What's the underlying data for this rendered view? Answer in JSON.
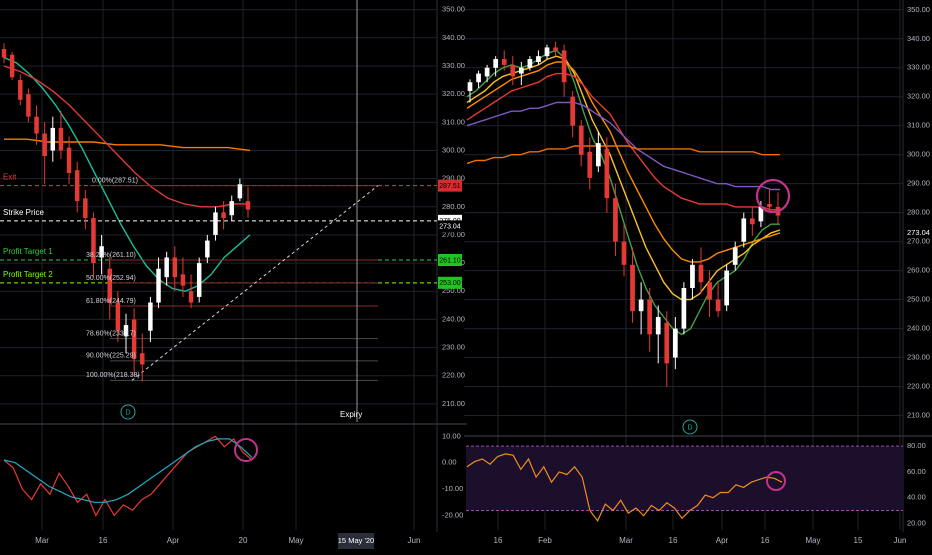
{
  "chart_data": [
    {
      "type": "candlestick",
      "title": "",
      "x_ticks": [
        "Mar",
        "16",
        "Apr",
        "20",
        "May",
        "Jun"
      ],
      "x_highlight_label": "15 May '20",
      "y_ticks": [
        "350.00",
        "340.00",
        "330.00",
        "320.00",
        "310.00",
        "300.00",
        "290.00",
        "280.00",
        "270.00",
        "260.00",
        "250.00",
        "240.00",
        "230.00",
        "220.00",
        "210.00"
      ],
      "ylim": [
        205,
        352
      ],
      "price_badges": [
        {
          "label": "287.51",
          "value": 287.51,
          "color": "#d32f2f"
        },
        {
          "label": "275.00",
          "value": 275.0,
          "color": "#ffffff"
        },
        {
          "label": "273.04",
          "value": 273.04,
          "color": "#000000"
        },
        {
          "label": "261.10",
          "value": 261.1,
          "color": "#21c321"
        },
        {
          "label": "253.00",
          "value": 253.0,
          "color": "#21c321"
        }
      ],
      "levels": [
        {
          "label": "Exit",
          "value": 287.51,
          "color": "#e53935"
        },
        {
          "label": "Strike Price",
          "value": 275.0,
          "color": "#ffffff"
        },
        {
          "label": "Profit Target 1",
          "value": 261.1,
          "color": "#2ecc40"
        },
        {
          "label": "Profit Target 2",
          "value": 253.0,
          "color": "#7fff00"
        }
      ],
      "fibonacci": [
        {
          "label": "0.00%(287.51)",
          "value": 287.51
        },
        {
          "label": "38.20%(261.10)",
          "value": 261.1
        },
        {
          "label": "50.00%(252.94)",
          "value": 252.94
        },
        {
          "label": "61.80%(244.79)",
          "value": 244.79
        },
        {
          "label": "78.60%(233.17)",
          "value": 233.17
        },
        {
          "label": "90.00%(225.29)",
          "value": 225.29
        },
        {
          "label": "100.00%(218.38)",
          "value": 218.38
        }
      ],
      "annotations": [
        "Expiry",
        "D"
      ],
      "candles": [
        {
          "o": 336,
          "h": 338,
          "c": 333,
          "l": 331
        },
        {
          "o": 334,
          "h": 335,
          "c": 326,
          "l": 325
        },
        {
          "o": 325,
          "h": 327,
          "c": 318,
          "l": 316
        },
        {
          "o": 320,
          "h": 322,
          "c": 312,
          "l": 310
        },
        {
          "o": 312,
          "h": 316,
          "c": 306,
          "l": 302
        },
        {
          "o": 306,
          "h": 310,
          "c": 298,
          "l": 288
        },
        {
          "o": 300,
          "h": 312,
          "c": 308,
          "l": 296
        },
        {
          "o": 308,
          "h": 314,
          "c": 300,
          "l": 297
        },
        {
          "o": 301,
          "h": 305,
          "c": 292,
          "l": 288
        },
        {
          "o": 293,
          "h": 296,
          "c": 282,
          "l": 278
        },
        {
          "o": 283,
          "h": 286,
          "c": 276,
          "l": 272
        },
        {
          "o": 276,
          "h": 278,
          "c": 260,
          "l": 255
        },
        {
          "o": 262,
          "h": 270,
          "c": 266,
          "l": 256
        },
        {
          "o": 258,
          "h": 262,
          "c": 246,
          "l": 240
        },
        {
          "o": 246,
          "h": 250,
          "c": 236,
          "l": 232
        },
        {
          "o": 234,
          "h": 242,
          "c": 238,
          "l": 228
        },
        {
          "o": 240,
          "h": 244,
          "c": 226,
          "l": 220
        },
        {
          "o": 228,
          "h": 235,
          "c": 224,
          "l": 218
        },
        {
          "o": 236,
          "h": 248,
          "c": 246,
          "l": 232
        },
        {
          "o": 246,
          "h": 262,
          "c": 258,
          "l": 244
        },
        {
          "o": 255,
          "h": 264,
          "c": 262,
          "l": 252
        },
        {
          "o": 262,
          "h": 266,
          "c": 255,
          "l": 250
        },
        {
          "o": 256,
          "h": 262,
          "c": 252,
          "l": 248
        },
        {
          "o": 250,
          "h": 256,
          "c": 246,
          "l": 244
        },
        {
          "o": 248,
          "h": 262,
          "c": 260,
          "l": 246
        },
        {
          "o": 262,
          "h": 270,
          "c": 268,
          "l": 260
        },
        {
          "o": 270,
          "h": 280,
          "c": 278,
          "l": 268
        },
        {
          "o": 278,
          "h": 282,
          "c": 276,
          "l": 272
        },
        {
          "o": 277,
          "h": 284,
          "c": 282,
          "l": 275
        },
        {
          "o": 283,
          "h": 290,
          "c": 288,
          "l": 282
        },
        {
          "o": 282,
          "h": 287,
          "c": 279,
          "l": 276
        }
      ],
      "ma_lines": [
        {
          "color": "#1bbd9b",
          "values": [
            333,
            331,
            327,
            322,
            316,
            309,
            301,
            292,
            283,
            274,
            266,
            259,
            254,
            251,
            250,
            252,
            256,
            262,
            266,
            270
          ]
        },
        {
          "color": "#f57c00",
          "values": [
            304,
            304,
            303,
            303,
            303,
            302,
            302,
            302,
            301,
            301,
            301,
            300
          ]
        },
        {
          "color": "#e53935",
          "values": [
            330,
            328,
            325,
            321,
            316,
            310,
            304,
            298,
            292,
            287,
            283,
            281,
            280,
            280,
            281,
            281
          ]
        }
      ],
      "oscillator": {
        "y_ticks": [
          "10.00",
          "0.00",
          "-10.00",
          "-20.00"
        ],
        "ylim": [
          -24,
          12
        ],
        "series": [
          {
            "color": "#e53935",
            "values": [
              1,
              -2,
              -10,
              -14,
              -8,
              -12,
              -4,
              -9,
              -15,
              -12,
              -20,
              -14,
              -20,
              -16,
              -18,
              -14,
              -12,
              -8,
              -4,
              0,
              4,
              6,
              8,
              10,
              6,
              9,
              4,
              1
            ]
          },
          {
            "color": "#26a9c4",
            "values": [
              1,
              0,
              -3,
              -6,
              -9,
              -11,
              -13,
              -14,
              -15,
              -15,
              -14,
              -12,
              -9,
              -6,
              -3,
              0,
              3,
              6,
              8,
              9,
              9,
              6,
              2
            ]
          }
        ]
      }
    },
    {
      "type": "candlestick",
      "title": "",
      "x_ticks": [
        "16",
        "Feb",
        "Mar",
        "16",
        "Apr",
        "16",
        "May",
        "15",
        "Jun"
      ],
      "y_ticks": [
        "350.00",
        "340.00",
        "330.00",
        "320.00",
        "310.00",
        "300.00",
        "290.00",
        "280.00",
        "270.00",
        "260.00",
        "250.00",
        "240.00",
        "230.00",
        "220.00",
        "210.00"
      ],
      "ylim": [
        205,
        352
      ],
      "price_badges": [
        {
          "label": "273.04",
          "value": 273.04
        }
      ],
      "annotations": [
        "D"
      ],
      "candles": [
        {
          "o": 322,
          "h": 326,
          "c": 325,
          "l": 318
        },
        {
          "o": 325,
          "h": 329,
          "c": 328,
          "l": 323
        },
        {
          "o": 327,
          "h": 331,
          "c": 330,
          "l": 325
        },
        {
          "o": 330,
          "h": 334,
          "c": 333,
          "l": 327
        },
        {
          "o": 333,
          "h": 336,
          "c": 331,
          "l": 329
        },
        {
          "o": 331,
          "h": 334,
          "c": 327,
          "l": 324
        },
        {
          "o": 328,
          "h": 332,
          "c": 330,
          "l": 324
        },
        {
          "o": 330,
          "h": 334,
          "c": 333,
          "l": 329
        },
        {
          "o": 332,
          "h": 336,
          "c": 334,
          "l": 331
        },
        {
          "o": 334,
          "h": 338,
          "c": 337,
          "l": 333
        },
        {
          "o": 337,
          "h": 339,
          "c": 336,
          "l": 334
        },
        {
          "o": 336,
          "h": 338,
          "c": 325,
          "l": 320
        },
        {
          "o": 320,
          "h": 322,
          "c": 310,
          "l": 306
        },
        {
          "o": 310,
          "h": 312,
          "c": 300,
          "l": 296
        },
        {
          "o": 301,
          "h": 306,
          "c": 292,
          "l": 288
        },
        {
          "o": 296,
          "h": 308,
          "c": 304,
          "l": 294
        },
        {
          "o": 302,
          "h": 306,
          "c": 285,
          "l": 280
        },
        {
          "o": 285,
          "h": 290,
          "c": 270,
          "l": 265
        },
        {
          "o": 270,
          "h": 276,
          "c": 262,
          "l": 258
        },
        {
          "o": 262,
          "h": 268,
          "c": 246,
          "l": 242
        },
        {
          "o": 246,
          "h": 256,
          "c": 250,
          "l": 238
        },
        {
          "o": 250,
          "h": 254,
          "c": 238,
          "l": 232
        },
        {
          "o": 238,
          "h": 248,
          "c": 244,
          "l": 228
        },
        {
          "o": 242,
          "h": 246,
          "c": 228,
          "l": 220
        },
        {
          "o": 230,
          "h": 244,
          "c": 240,
          "l": 226
        },
        {
          "o": 240,
          "h": 256,
          "c": 254,
          "l": 238
        },
        {
          "o": 254,
          "h": 264,
          "c": 262,
          "l": 250
        },
        {
          "o": 262,
          "h": 268,
          "c": 256,
          "l": 252
        },
        {
          "o": 256,
          "h": 260,
          "c": 250,
          "l": 244
        },
        {
          "o": 250,
          "h": 256,
          "c": 246,
          "l": 244
        },
        {
          "o": 248,
          "h": 262,
          "c": 260,
          "l": 246
        },
        {
          "o": 262,
          "h": 270,
          "c": 268,
          "l": 260
        },
        {
          "o": 270,
          "h": 280,
          "c": 278,
          "l": 268
        },
        {
          "o": 278,
          "h": 282,
          "c": 276,
          "l": 272
        },
        {
          "o": 277,
          "h": 284,
          "c": 282,
          "l": 275
        },
        {
          "o": 283,
          "h": 288,
          "c": 282,
          "l": 280
        },
        {
          "o": 282,
          "h": 287,
          "c": 279,
          "l": 276
        }
      ],
      "ma_lines": [
        {
          "color": "#43a047",
          "values": [
            320,
            322,
            325,
            328,
            330,
            331,
            330,
            331,
            333,
            335,
            336,
            333,
            325,
            315,
            306,
            300,
            292,
            282,
            272,
            262,
            254,
            248,
            244,
            240,
            238,
            240,
            246,
            252,
            256,
            258,
            260,
            264,
            270,
            274,
            276,
            276
          ]
        },
        {
          "color": "#fbc02d",
          "values": [
            318,
            320,
            322,
            325,
            327,
            328,
            329,
            330,
            331,
            333,
            334,
            333,
            328,
            320,
            312,
            306,
            300,
            292,
            284,
            276,
            268,
            262,
            256,
            252,
            250,
            250,
            252,
            256,
            260,
            262,
            264,
            266,
            269,
            271,
            273,
            274
          ]
        },
        {
          "color": "#fb8c00",
          "values": [
            316,
            318,
            320,
            322,
            324,
            326,
            327,
            328,
            329,
            331,
            332,
            332,
            329,
            324,
            318,
            313,
            308,
            301,
            294,
            288,
            282,
            276,
            271,
            267,
            264,
            263,
            263,
            264,
            266,
            267,
            268,
            269,
            270,
            271,
            272,
            273
          ]
        },
        {
          "color": "#e53935",
          "values": [
            312,
            314,
            316,
            318,
            320,
            322,
            323,
            324,
            325,
            327,
            328,
            328,
            327,
            324,
            320,
            317,
            314,
            309,
            304,
            300,
            296,
            292,
            289,
            287,
            285,
            284,
            283,
            283,
            283,
            283,
            282,
            282,
            282,
            282,
            281,
            281
          ]
        },
        {
          "color": "#7e57c2",
          "values": [
            310,
            311,
            312,
            313,
            314,
            315,
            315,
            316,
            316,
            317,
            318,
            318,
            318,
            317,
            315,
            313,
            311,
            308,
            305,
            302,
            300,
            298,
            296,
            295,
            294,
            293,
            292,
            291,
            290,
            290,
            289,
            289,
            289,
            289,
            288,
            288
          ]
        },
        {
          "color": "#ef6c00",
          "values": [
            297,
            298,
            298,
            299,
            299,
            300,
            300,
            301,
            301,
            302,
            302,
            302,
            303,
            303,
            303,
            303,
            303,
            303,
            303,
            302,
            302,
            302,
            302,
            302,
            302,
            302,
            301,
            301,
            301,
            301,
            301,
            301,
            301,
            300,
            300,
            300
          ]
        }
      ],
      "oscillator": {
        "y_ticks": [
          "80.00",
          "60.00",
          "40.00",
          "20.00"
        ],
        "ylim": [
          18,
          84
        ],
        "series": [
          {
            "color": "#ef8c1e",
            "values": [
              64,
              68,
              70,
              66,
              72,
              74,
              73,
              62,
              70,
              56,
              64,
              52,
              60,
              58,
              64,
              56,
              30,
              22,
              35,
              30,
              38,
              28,
              32,
              26,
              34,
              30,
              36,
              32,
              24,
              30,
              34,
              42,
              40,
              44,
              44,
              50,
              48,
              52,
              54,
              56,
              55,
              52
            ]
          }
        ]
      }
    }
  ]
}
